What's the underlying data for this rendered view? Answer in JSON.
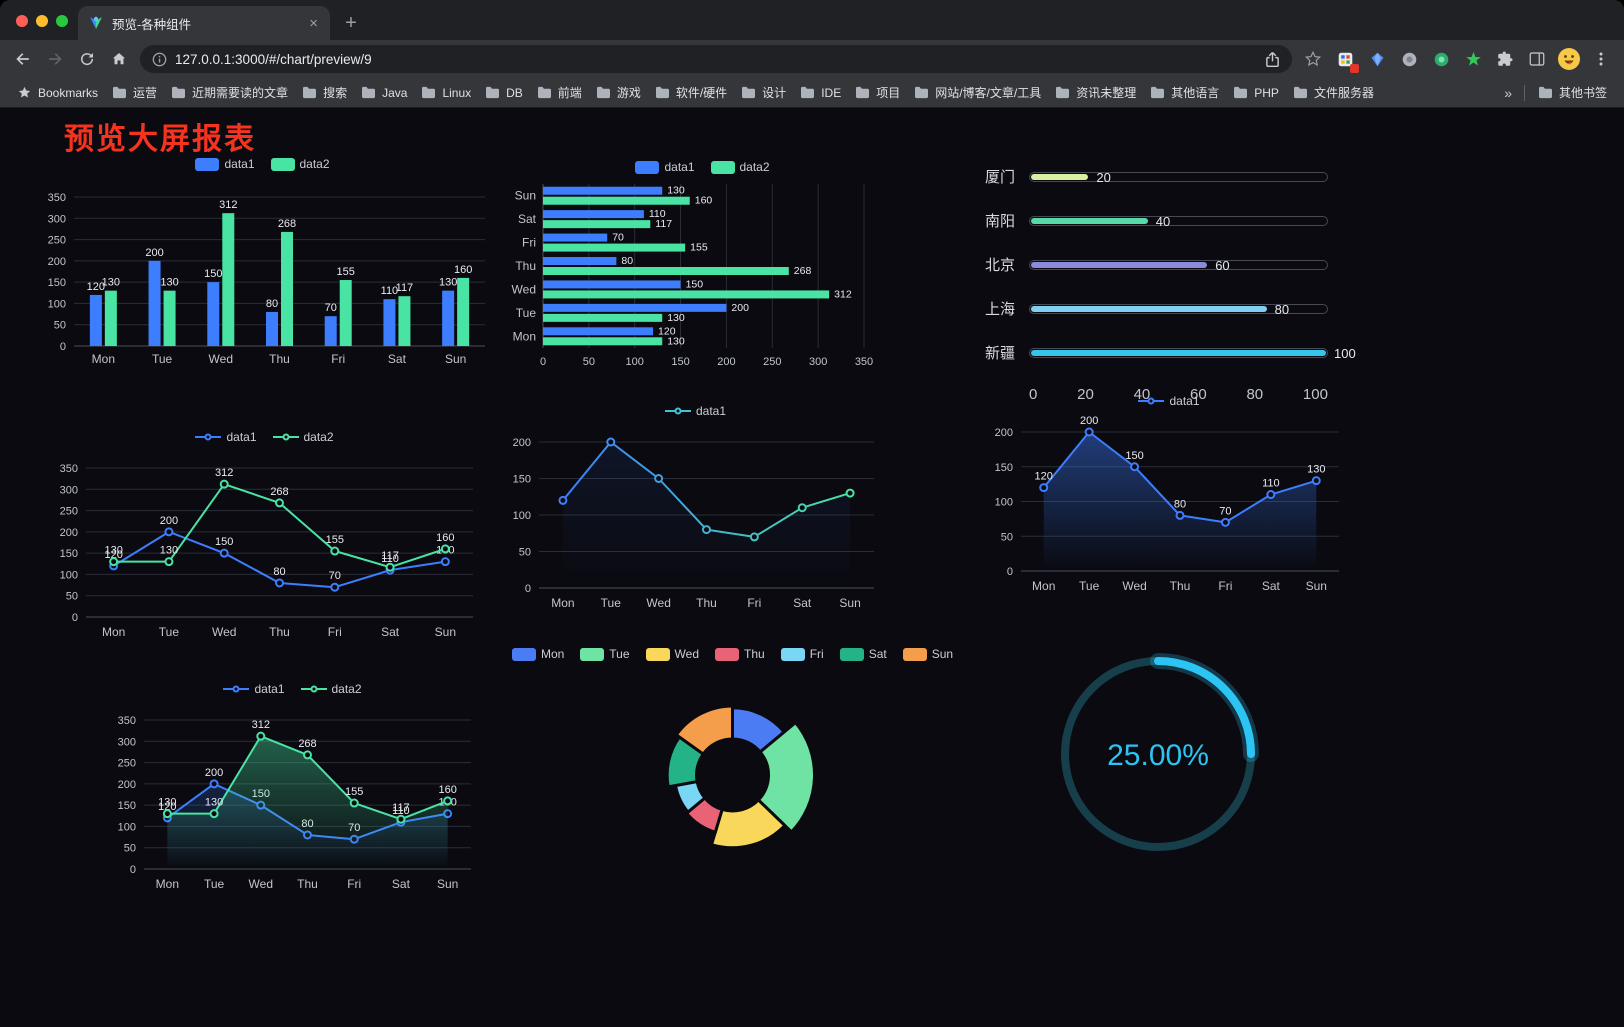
{
  "browser": {
    "tab_title": "预览-各种组件",
    "tab_close": "×",
    "new_tab": "+",
    "url": "127.0.0.1:3000/#/chart/preview/9",
    "bookmarks_label": "Bookmarks",
    "bookmarks": [
      "运营",
      "近期需要读的文章",
      "搜索",
      "Java",
      "Linux",
      "DB",
      "前端",
      "游戏",
      "软件/硬件",
      "设计",
      "IDE",
      "项目",
      "网站/博客/文章/工具",
      "资讯未整理",
      "其他语言",
      "PHP",
      "文件服务器"
    ],
    "bookmarks_overflow": "»",
    "other_bookmarks": "其他书签",
    "traffic_lights": {
      "close": "#ff5f57",
      "minimize": "#febc2e",
      "zoom": "#28c840"
    }
  },
  "page": {
    "title": "预览大屏报表",
    "title_color": "#f5331f",
    "background": "#0a0a10"
  },
  "accent_colors": {
    "data1": "#3D7EFF",
    "data2": "#49E3A4"
  },
  "chart_data": [
    {
      "type": "bar",
      "legend": [
        {
          "label": "data1",
          "color": "#3D7EFF"
        },
        {
          "label": "data2",
          "color": "#49E3A4"
        }
      ],
      "categories": [
        "Mon",
        "Tue",
        "Wed",
        "Thu",
        "Fri",
        "Sat",
        "Sun"
      ],
      "series": [
        {
          "name": "data1",
          "color": "#3D7EFF",
          "values": [
            120,
            200,
            150,
            80,
            70,
            110,
            130
          ]
        },
        {
          "name": "data2",
          "color": "#49E3A4",
          "values": [
            130,
            130,
            312,
            268,
            155,
            117,
            160
          ]
        }
      ],
      "ylim": [
        0,
        350
      ],
      "ystep": 50
    },
    {
      "type": "hbar",
      "legend": [
        {
          "label": "data1",
          "color": "#3D7EFF"
        },
        {
          "label": "data2",
          "color": "#49E3A4"
        }
      ],
      "categories": [
        "Mon",
        "Tue",
        "Wed",
        "Thu",
        "Fri",
        "Sat",
        "Sun"
      ],
      "series": [
        {
          "name": "data1",
          "color": "#3D7EFF",
          "values": [
            120,
            200,
            150,
            80,
            70,
            110,
            130
          ]
        },
        {
          "name": "data2",
          "color": "#49E3A4",
          "values": [
            130,
            130,
            312,
            268,
            155,
            117,
            160
          ]
        }
      ],
      "xlim": [
        0,
        350
      ],
      "xstep": 50
    },
    {
      "type": "progress",
      "items": [
        {
          "label": "厦门",
          "value": 20,
          "color": "#D9EDA3"
        },
        {
          "label": "南阳",
          "value": 40,
          "color": "#57D9A9"
        },
        {
          "label": "北京",
          "value": 60,
          "color": "#8C8ADB"
        },
        {
          "label": "上海",
          "value": 80,
          "color": "#7FD0EF"
        },
        {
          "label": "新疆",
          "value": 100,
          "color": "#36C6EB"
        }
      ],
      "max": 100,
      "axis": [
        0,
        20,
        40,
        60,
        80,
        100
      ]
    },
    {
      "type": "line",
      "legend": [
        {
          "label": "data1",
          "color": "#3D7EFF",
          "icon": "line"
        },
        {
          "label": "data2",
          "color": "#49E3A4",
          "icon": "line"
        }
      ],
      "categories": [
        "Mon",
        "Tue",
        "Wed",
        "Thu",
        "Fri",
        "Sat",
        "Sun"
      ],
      "series": [
        {
          "name": "data1",
          "color": "#3D7EFF",
          "values": [
            120,
            200,
            150,
            80,
            70,
            110,
            130
          ],
          "labels": true
        },
        {
          "name": "data2",
          "color": "#49E3A4",
          "values": [
            130,
            130,
            312,
            268,
            155,
            117,
            160
          ],
          "labels": true
        }
      ],
      "ylim": [
        0,
        350
      ],
      "ystep": 50
    },
    {
      "type": "line",
      "legend": [
        {
          "label": "data1",
          "color": "#41C4D2",
          "icon": "line"
        }
      ],
      "categories": [
        "Mon",
        "Tue",
        "Wed",
        "Thu",
        "Fri",
        "Sat",
        "Sun"
      ],
      "series": [
        {
          "name": "data1",
          "color": "#3D7EFF",
          "values": [
            120,
            200,
            150,
            80,
            70,
            110,
            130
          ],
          "labels": false,
          "area": 0.1
        }
      ],
      "ylim": [
        0,
        200
      ],
      "ystep": 50,
      "gradient": [
        "#3D7EFF",
        "#49E3A4"
      ]
    },
    {
      "type": "line",
      "legend": [
        {
          "label": "data1",
          "color": "#3D7EFF",
          "icon": "line"
        }
      ],
      "categories": [
        "Mon",
        "Tue",
        "Wed",
        "Thu",
        "Fri",
        "Sat",
        "Sun"
      ],
      "series": [
        {
          "name": "data1",
          "color": "#3D7EFF",
          "values": [
            120,
            200,
            150,
            80,
            70,
            110,
            130
          ],
          "labels": true,
          "area": 0.45
        }
      ],
      "ylim": [
        0,
        200
      ],
      "ystep": 50
    },
    {
      "type": "line",
      "legend": [
        {
          "label": "data1",
          "color": "#3D7EFF",
          "icon": "line"
        },
        {
          "label": "data2",
          "color": "#49E3A4",
          "icon": "line"
        }
      ],
      "categories": [
        "Mon",
        "Tue",
        "Wed",
        "Thu",
        "Fri",
        "Sat",
        "Sun"
      ],
      "series": [
        {
          "name": "data1",
          "color": "#3D7EFF",
          "values": [
            120,
            200,
            150,
            80,
            70,
            110,
            130
          ],
          "labels": true,
          "area": 0.22
        },
        {
          "name": "data2",
          "color": "#49E3A4",
          "values": [
            130,
            130,
            312,
            268,
            155,
            117,
            160
          ],
          "labels": true,
          "area": 0.4
        }
      ],
      "ylim": [
        0,
        350
      ],
      "ystep": 50
    },
    {
      "type": "pie",
      "rose": true,
      "legend": [
        {
          "label": "Mon",
          "color": "#4C7CF4"
        },
        {
          "label": "Tue",
          "color": "#6FE3A4"
        },
        {
          "label": "Wed",
          "color": "#F8D75A"
        },
        {
          "label": "Thu",
          "color": "#E96377"
        },
        {
          "label": "Fri",
          "color": "#7AD6F5"
        },
        {
          "label": "Sat",
          "color": "#23B386"
        },
        {
          "label": "Sun",
          "color": "#F49D4B"
        }
      ],
      "values": [
        120,
        200,
        150,
        80,
        70,
        110,
        130
      ]
    },
    {
      "type": "gauge",
      "value_text": "25.00%",
      "percent": 25,
      "color": "#2CC4F2",
      "track_color": "#173F4B"
    }
  ]
}
